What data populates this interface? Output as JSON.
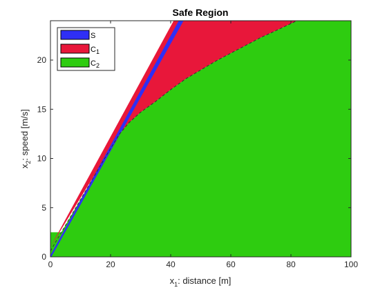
{
  "chart_data": {
    "type": "area",
    "title": "Safe Region",
    "xlabel": {
      "pre": "x",
      "sub": "1",
      "post": ": distance [m]"
    },
    "ylabel": {
      "pre": "x",
      "sub": "2",
      "post": ": speed [m/s]"
    },
    "xlim": [
      0,
      100
    ],
    "ylim": [
      0,
      24
    ],
    "xticks": [
      0,
      20,
      40,
      60,
      80,
      100
    ],
    "yticks": [
      0,
      5,
      10,
      15,
      20
    ],
    "grid": false,
    "legend_position": "top-left",
    "series": [
      {
        "key": "S",
        "label": {
          "pre": "S",
          "sub": ""
        },
        "color": "#2f2ff5",
        "shape": "band between lines",
        "upper_line": [
          [
            0,
            0
          ],
          [
            44,
            24
          ]
        ],
        "lower_line": [
          [
            0,
            0
          ],
          [
            43,
            24
          ]
        ]
      },
      {
        "key": "C1",
        "label": {
          "pre": "C",
          "sub": "1"
        },
        "color": "#e8173a",
        "shape": "region between line and curve",
        "left_line": [
          [
            0,
            1.0
          ],
          [
            41,
            24
          ]
        ],
        "lower_curve": [
          [
            18,
            10
          ],
          [
            20,
            11
          ],
          [
            23,
            12.5
          ],
          [
            26,
            13.6
          ],
          [
            30,
            14.7
          ],
          [
            35,
            15.8
          ],
          [
            40,
            17.0
          ],
          [
            45,
            18.1
          ],
          [
            50,
            19.0
          ],
          [
            55,
            19.9
          ],
          [
            60,
            20.7
          ],
          [
            65,
            21.5
          ],
          [
            70,
            22.3
          ],
          [
            75,
            23.0
          ],
          [
            82,
            24.0
          ]
        ]
      },
      {
        "key": "C2",
        "label": {
          "pre": "C",
          "sub": "2"
        },
        "color": "#2ecc10",
        "shape": "filled below boundary",
        "boundary": [
          [
            0,
            0.6
          ],
          [
            18,
            10
          ],
          [
            20,
            11
          ],
          [
            23,
            12.5
          ],
          [
            26,
            13.6
          ],
          [
            30,
            14.7
          ],
          [
            35,
            15.8
          ],
          [
            40,
            17.0
          ],
          [
            45,
            18.1
          ],
          [
            50,
            19.0
          ],
          [
            55,
            19.9
          ],
          [
            60,
            20.7
          ],
          [
            65,
            21.5
          ],
          [
            70,
            22.3
          ],
          [
            75,
            23.0
          ],
          [
            82,
            24.0
          ],
          [
            100,
            24.0
          ]
        ],
        "step_region": {
          "x_max": 3.5,
          "y_max": 2.5
        }
      }
    ]
  }
}
